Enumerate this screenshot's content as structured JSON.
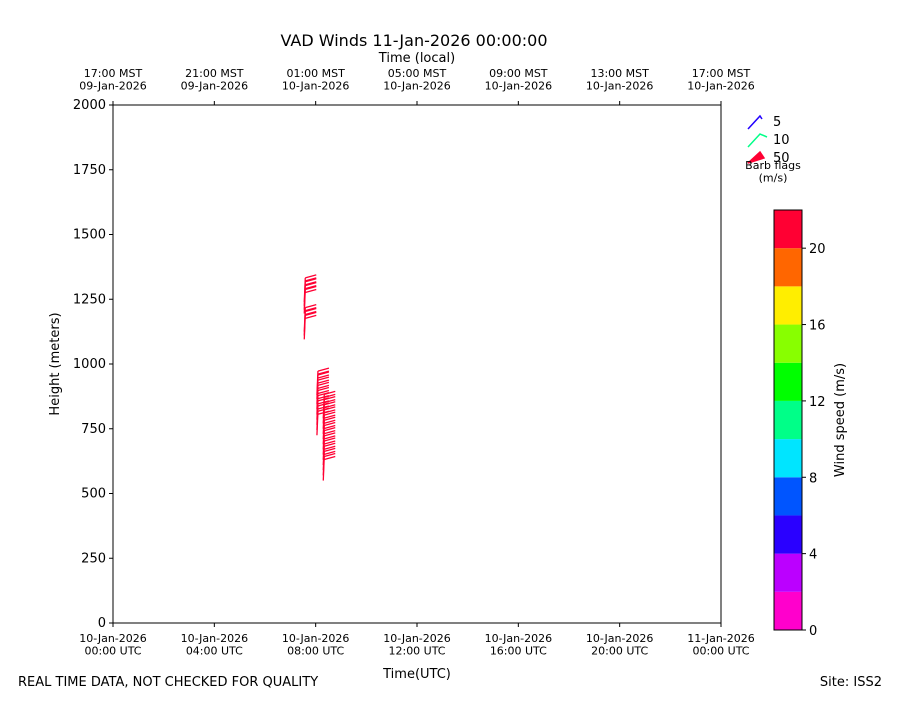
{
  "chart_data": {
    "type": "barbs",
    "title": "VAD Winds 11-Jan-2026 00:00:00",
    "top_xlabel": "Time (local)",
    "xlabel": "Time(UTC)",
    "ylabel": "Height (meters)",
    "footer_left": "REAL TIME DATA, NOT CHECKED FOR QUALITY",
    "footer_right": "Site: ISS2",
    "xlim": [
      0,
      24
    ],
    "xticks": [
      {
        "value": 0,
        "label": "10-Jan-2026\n00:00 UTC"
      },
      {
        "value": 4,
        "label": "10-Jan-2026\n04:00 UTC"
      },
      {
        "value": 8,
        "label": "10-Jan-2026\n08:00 UTC"
      },
      {
        "value": 12,
        "label": "10-Jan-2026\n12:00 UTC"
      },
      {
        "value": 16,
        "label": "10-Jan-2026\n16:00 UTC"
      },
      {
        "value": 20,
        "label": "10-Jan-2026\n20:00 UTC"
      },
      {
        "value": 24,
        "label": "11-Jan-2026\n00:00 UTC"
      }
    ],
    "top_xticks": [
      {
        "value": 0,
        "label": "17:00 MST\n09-Jan-2026"
      },
      {
        "value": 4,
        "label": "21:00 MST\n09-Jan-2026"
      },
      {
        "value": 8,
        "label": "01:00 MST\n10-Jan-2026"
      },
      {
        "value": 12,
        "label": "05:00 MST\n10-Jan-2026"
      },
      {
        "value": 16,
        "label": "09:00 MST\n10-Jan-2026"
      },
      {
        "value": 20,
        "label": "13:00 MST\n10-Jan-2026"
      },
      {
        "value": 24,
        "label": "17:00 MST\n10-Jan-2026"
      }
    ],
    "ylim": [
      0,
      2000
    ],
    "yticks": [
      0,
      250,
      500,
      750,
      1000,
      1250,
      1500,
      1750,
      2000
    ],
    "barbs": {
      "x": [
        7.55,
        7.55,
        7.55,
        7.55,
        7.55,
        7.55,
        7.55,
        8.05,
        8.05,
        8.05,
        8.05,
        8.05,
        8.05,
        8.05,
        8.05,
        8.05,
        8.3,
        8.3,
        8.3,
        8.3,
        8.3,
        8.3,
        8.3,
        8.3,
        8.3,
        8.3,
        8.3,
        8.3,
        8.3
      ],
      "heights": [
        1095,
        1110,
        1125,
        1195,
        1210,
        1225,
        1240,
        725,
        745,
        765,
        785,
        805,
        825,
        845,
        865,
        880,
        550,
        570,
        590,
        610,
        630,
        650,
        670,
        690,
        710,
        730,
        750,
        770,
        790
      ],
      "speeds": [
        21,
        21,
        21,
        21,
        21,
        21,
        21,
        21,
        21,
        21,
        21,
        21,
        21,
        21,
        21,
        21,
        21,
        21,
        21,
        21,
        21,
        21,
        21,
        21,
        21,
        21,
        21,
        21,
        21
      ]
    },
    "barb_legend": {
      "title": "Barb flags\n(m/s)",
      "values": [
        5,
        10,
        50
      ],
      "colors": [
        "#2200ff",
        "#00ff88",
        "#ff0033"
      ]
    },
    "colorbar": {
      "label": "Wind speed (m/s)",
      "bins": [
        0,
        2,
        4,
        6,
        8,
        10,
        12,
        14,
        16,
        18,
        20,
        22
      ],
      "colors": [
        "#ff00cc",
        "#bb00ff",
        "#2a00ff",
        "#0055ff",
        "#00e5ff",
        "#00ff88",
        "#00ff00",
        "#88ff00",
        "#ffee00",
        "#ff6600",
        "#ff0033"
      ],
      "ticks": [
        0,
        4,
        8,
        12,
        16,
        20
      ]
    }
  }
}
